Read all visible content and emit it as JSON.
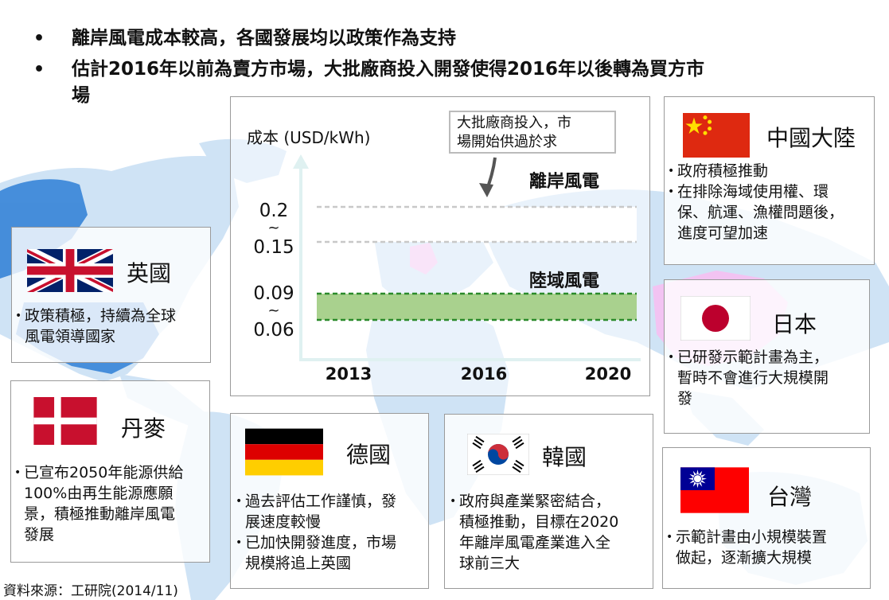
{
  "bullets": [
    "離岸風電成本較高，各國發展均以政策作為支持",
    "估計2016年以前為賣方市場，大批廠商投入開發使得2016年以後轉為買方市場"
  ],
  "bullet_lines": {
    "line2a": "估計2016年以前為賣方市場，大批廠商投入開發使得2016年以後轉為買方市",
    "line2b": "場"
  },
  "chart_data": {
    "type": "area",
    "ylabel": "成本 (USD/kWh)",
    "x": [
      "2013",
      "2016",
      "2020"
    ],
    "series": [
      {
        "name": "離岸風電",
        "upper": [
          0.2,
          0.2,
          0.2
        ],
        "lower": [
          0.15,
          0.15,
          0.15
        ]
      },
      {
        "name": "陸域風電",
        "upper": [
          0.09,
          0.09,
          0.09
        ],
        "lower": [
          0.06,
          0.06,
          0.06
        ]
      }
    ],
    "y_tick_labels": [
      {
        "top": "0.2",
        "tilde": "~",
        "bottom": "0.15"
      },
      {
        "top": "0.09",
        "tilde": "~",
        "bottom": "0.06"
      }
    ],
    "annotation": "大批廠商投入，市場開始供過於求",
    "annotation_lines": [
      "大批廠商投入，市",
      "場開始供過於求"
    ],
    "colors": {
      "land_fill": "#a9d18e",
      "land_border": "#2a8a2a",
      "offshore_border": "#c8c8c8"
    }
  },
  "countries": [
    {
      "id": "uk",
      "name": "英國",
      "flag": "uk-flag-icon",
      "notes": [
        "政策積極，持續為全球風電領導國家"
      ],
      "note_lines": [
        [
          "政策積極，持續為全球",
          "風電領導國家"
        ]
      ]
    },
    {
      "id": "dk",
      "name": "丹麥",
      "flag": "denmark-flag-icon",
      "notes": [
        "已宣布2050年能源供給100%由再生能源應願景，積極推動離岸風電發展"
      ],
      "note_lines": [
        [
          "已宣布2050年能源供給",
          "100%由再生能源應願",
          "景，積極推動離岸風電",
          "發展"
        ]
      ]
    },
    {
      "id": "de",
      "name": "德國",
      "flag": "germany-flag-icon",
      "notes": [
        "過去評估工作謹慎，發展速度較慢",
        "已加快開發進度，市場規模將追上英國"
      ],
      "note_lines": [
        [
          "過去評估工作謹慎，發",
          "展速度較慢"
        ],
        [
          "已加快開發進度，市場",
          "規模將追上英國"
        ]
      ]
    },
    {
      "id": "kr",
      "name": "韓國",
      "flag": "korea-flag-icon",
      "notes": [
        "政府與產業緊密結合，積極推動，目標在2020年離岸風電產業進入全球前三大"
      ],
      "note_lines": [
        [
          "政府與產業緊密結合，",
          "積極推動，目標在2020",
          "年離岸風電產業進入全",
          "球前三大"
        ]
      ]
    },
    {
      "id": "cn",
      "name": "中國大陸",
      "flag": "china-flag-icon",
      "notes": [
        "政府積極推動",
        "在排除海域使用權、環保、航運、漁權問題後，進度可望加速"
      ],
      "note_lines": [
        [
          "政府積極推動"
        ],
        [
          "在排除海域使用權、環",
          "保、航運、漁權問題後，",
          "進度可望加速"
        ]
      ]
    },
    {
      "id": "jp",
      "name": "日本",
      "flag": "japan-flag-icon",
      "notes": [
        "已研發示範計畫為主，暫時不會進行大規模開發"
      ],
      "note_lines": [
        [
          "已研發示範計畫為主，",
          "暫時不會進行大規模開",
          "發"
        ]
      ]
    },
    {
      "id": "tw",
      "name": "台灣",
      "flag": "taiwan-flag-icon",
      "notes": [
        "示範計畫由小規模裝置做起，逐漸擴大規模"
      ],
      "note_lines": [
        [
          "示範計畫由小規模裝置",
          "做起，逐漸擴大規模"
        ]
      ]
    }
  ],
  "source": "資料來源：工研院(2014/11)",
  "colors": {
    "map": "#cfe3f5",
    "map_dark": "#2e7fd6",
    "highlight": "#f2c3f2"
  }
}
